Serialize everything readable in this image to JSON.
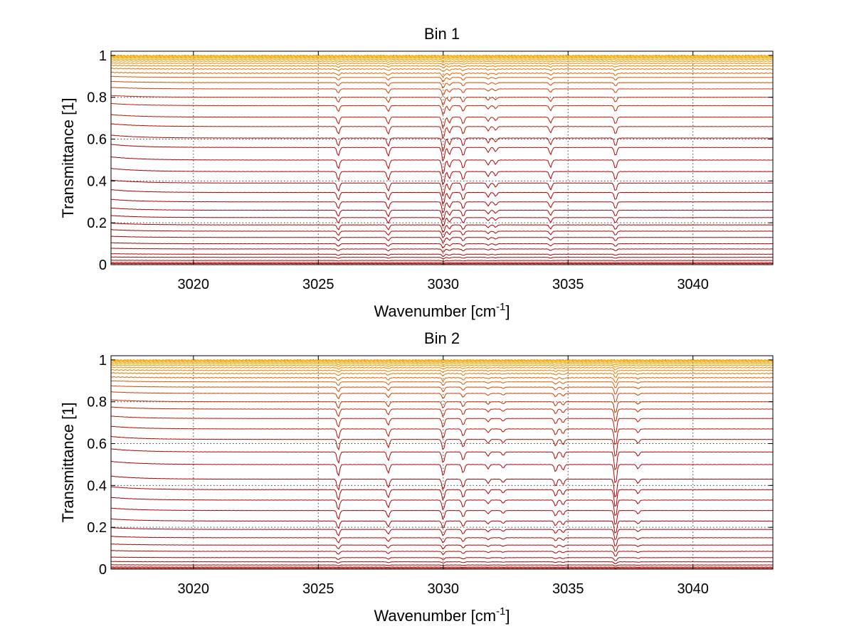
{
  "chart_data": [
    {
      "type": "line",
      "title": "Bin 1",
      "xlabel": "Wavenumber [cm",
      "xlabel_sup": "-1",
      "xlabel_end": "]",
      "ylabel": "Transmittance [1]",
      "xlim": [
        3016.7,
        3043.2
      ],
      "ylim": [
        0,
        1.02
      ],
      "xticks": [
        3020,
        3025,
        3030,
        3035,
        3040
      ],
      "xtick_labels": [
        "3020",
        "3025",
        "3030",
        "3035",
        "3040"
      ],
      "yticks": [
        0,
        0.2,
        0.4,
        0.6,
        0.8,
        1
      ],
      "ytick_labels": [
        "0",
        "0.2",
        "0.4",
        "0.6",
        "0.8",
        "1"
      ],
      "grid": true,
      "series_levels": [
        0.0,
        0.005,
        0.01,
        0.02,
        0.035,
        0.05,
        0.075,
        0.1,
        0.13,
        0.16,
        0.19,
        0.225,
        0.26,
        0.3,
        0.345,
        0.39,
        0.445,
        0.5,
        0.56,
        0.605,
        0.66,
        0.705,
        0.76,
        0.8,
        0.84,
        0.87,
        0.895,
        0.915,
        0.935,
        0.95,
        0.962,
        0.972,
        0.98,
        0.987,
        0.992,
        0.996,
        0.999
      ],
      "absorption_lines": [
        {
          "x": 3025.8,
          "depth": 0.12
        },
        {
          "x": 3027.8,
          "depth": 0.12
        },
        {
          "x": 3030.0,
          "depth": 0.2
        },
        {
          "x": 3030.25,
          "depth": 0.1
        },
        {
          "x": 3030.8,
          "depth": 0.12
        },
        {
          "x": 3031.8,
          "depth": 0.07
        },
        {
          "x": 3032.1,
          "depth": 0.06
        },
        {
          "x": 3034.3,
          "depth": 0.1
        },
        {
          "x": 3036.9,
          "depth": 0.12
        }
      ],
      "colors": {
        "low": "#b00000",
        "high": "#ffb000"
      }
    },
    {
      "type": "line",
      "title": "Bin 2",
      "xlabel": "Wavenumber [cm",
      "xlabel_sup": "-1",
      "xlabel_end": "]",
      "ylabel": "Transmittance [1]",
      "xlim": [
        3016.7,
        3043.2
      ],
      "ylim": [
        0,
        1.02
      ],
      "xticks": [
        3020,
        3025,
        3030,
        3035,
        3040
      ],
      "xtick_labels": [
        "3020",
        "3025",
        "3030",
        "3035",
        "3040"
      ],
      "yticks": [
        0,
        0.2,
        0.4,
        0.6,
        0.8,
        1
      ],
      "ytick_labels": [
        "0",
        "0.2",
        "0.4",
        "0.6",
        "0.8",
        "1"
      ],
      "grid": true,
      "series_levels": [
        0.0,
        0.005,
        0.01,
        0.02,
        0.035,
        0.055,
        0.085,
        0.115,
        0.15,
        0.19,
        0.23,
        0.28,
        0.33,
        0.38,
        0.43,
        0.5,
        0.56,
        0.62,
        0.67,
        0.72,
        0.765,
        0.8,
        0.84,
        0.87,
        0.895,
        0.915,
        0.935,
        0.95,
        0.963,
        0.973,
        0.981,
        0.988,
        0.993,
        0.997,
        0.999
      ],
      "absorption_lines": [
        {
          "x": 3025.8,
          "depth": 0.16
        },
        {
          "x": 3027.8,
          "depth": 0.12
        },
        {
          "x": 3030.0,
          "depth": 0.16
        },
        {
          "x": 3030.8,
          "depth": 0.12
        },
        {
          "x": 3031.8,
          "depth": 0.06
        },
        {
          "x": 3032.4,
          "depth": 0.05
        },
        {
          "x": 3034.5,
          "depth": 0.1
        },
        {
          "x": 3034.8,
          "depth": 0.08
        },
        {
          "x": 3036.9,
          "depth": 0.28
        },
        {
          "x": 3037.8,
          "depth": 0.06
        }
      ],
      "colors": {
        "low": "#b00000",
        "high": "#ffb000"
      }
    }
  ]
}
